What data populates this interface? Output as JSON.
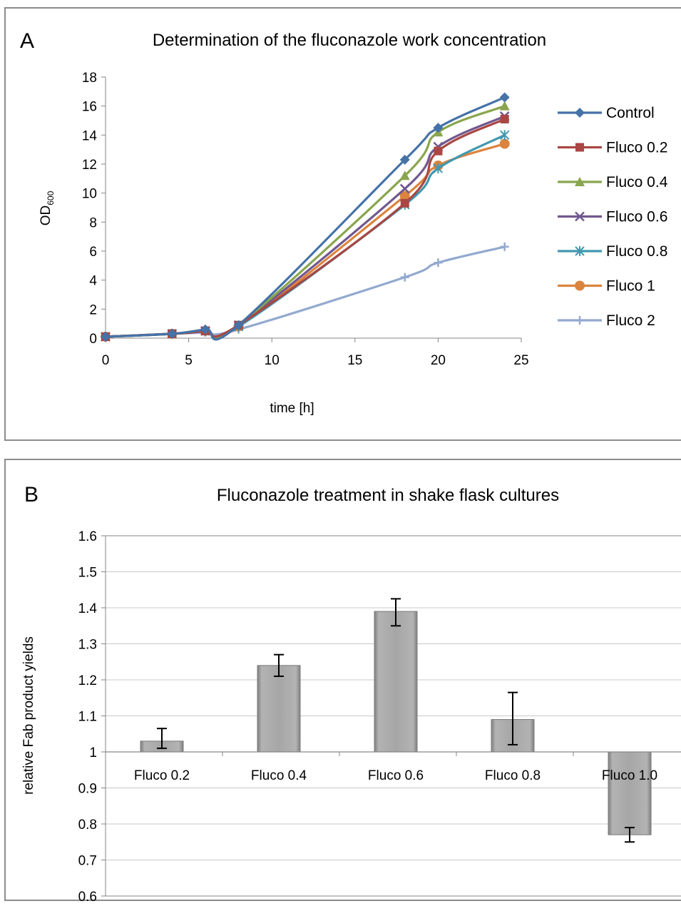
{
  "chart_data": [
    {
      "type": "line",
      "panel_label": "A",
      "title": "Determination of the fluconazole work concentration",
      "xlabel": "time [h]",
      "ylabel_main": "OD",
      "ylabel_sub": "600",
      "xlim": [
        0,
        25
      ],
      "ylim": [
        0,
        18
      ],
      "xticks": [
        0,
        5,
        10,
        15,
        20,
        25
      ],
      "yticks": [
        0,
        2,
        4,
        6,
        8,
        10,
        12,
        14,
        16,
        18
      ],
      "grid": false,
      "legend": "right",
      "x": [
        0,
        4,
        6,
        8,
        18,
        20,
        24
      ],
      "series": [
        {
          "name": "Control",
          "color": "#4572A7",
          "marker": "diamond",
          "values": [
            0.1,
            0.3,
            0.6,
            0.9,
            12.3,
            14.5,
            16.6
          ]
        },
        {
          "name": "Fluco 0.2",
          "color": "#AA4643",
          "marker": "square",
          "values": [
            0.1,
            0.3,
            0.5,
            0.9,
            9.3,
            12.9,
            15.1
          ]
        },
        {
          "name": "Fluco 0.4",
          "color": "#89A54E",
          "marker": "triangle",
          "values": [
            0.1,
            0.3,
            0.6,
            0.9,
            11.2,
            14.2,
            16.0
          ]
        },
        {
          "name": "Fluco 0.6",
          "color": "#71588F",
          "marker": "x",
          "values": [
            0.1,
            0.3,
            0.5,
            0.9,
            10.3,
            13.2,
            15.3
          ]
        },
        {
          "name": "Fluco 0.8",
          "color": "#4198AF",
          "marker": "star",
          "values": [
            0.1,
            0.3,
            0.5,
            0.8,
            9.2,
            11.7,
            14.0
          ]
        },
        {
          "name": "Fluco 1",
          "color": "#DB843D",
          "marker": "circle",
          "values": [
            0.1,
            0.3,
            0.5,
            0.8,
            9.8,
            11.9,
            13.4
          ]
        },
        {
          "name": "Fluco 2",
          "color": "#93A9CF",
          "marker": "plus",
          "values": [
            0.1,
            0.3,
            0.4,
            0.6,
            4.2,
            5.2,
            6.3
          ]
        }
      ]
    },
    {
      "type": "bar",
      "panel_label": "B",
      "title": "Fluconazole treatment in shake flask cultures",
      "xlabel": "",
      "ylabel": "relative Fab product yields",
      "ylim": [
        0.6,
        1.6
      ],
      "yticks": [
        "0.6",
        "0.7",
        "0.8",
        "0.9",
        "1",
        "1.1",
        "1.2",
        "1.3",
        "1.4",
        "1.5",
        "1.6"
      ],
      "baseline": 1,
      "grid": true,
      "categories": [
        "Fluco 0.2",
        "Fluco 0.4",
        "Fluco 0.6",
        "Fluco 0.8",
        "Fluco 1.0"
      ],
      "values": [
        1.03,
        1.24,
        1.39,
        1.09,
        0.77
      ],
      "error_low": [
        1.01,
        1.21,
        1.35,
        1.02,
        0.75
      ],
      "error_high": [
        1.065,
        1.27,
        1.425,
        1.165,
        0.79
      ],
      "bar_color": "#A6A6A6"
    }
  ]
}
